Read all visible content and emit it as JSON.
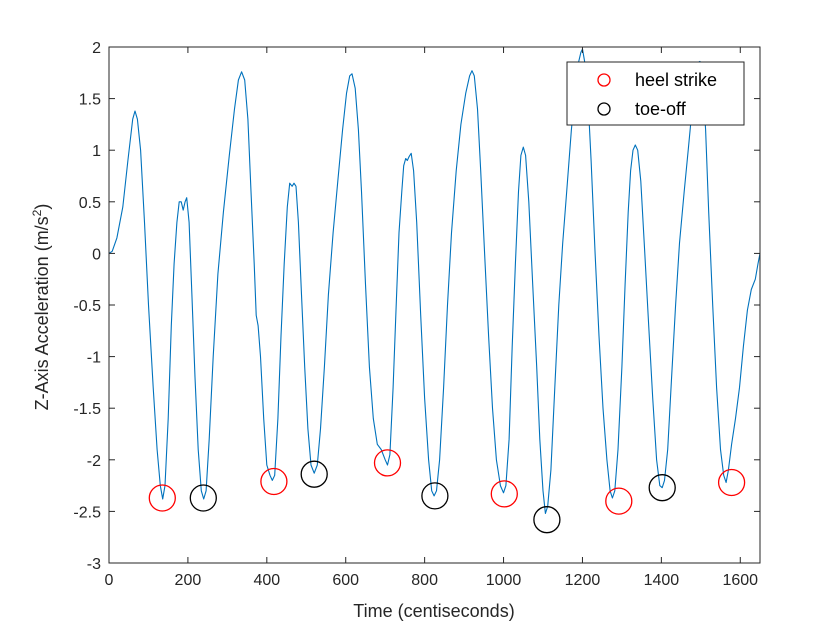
{
  "chart_data": {
    "type": "line",
    "xlabel": "Time (centiseconds)",
    "ylabel_main": "Z-Axis Acceleration (m/s",
    "ylabel_sup": "2",
    "ylabel_close": ")",
    "xlim": [
      0,
      1650
    ],
    "ylim": [
      -3,
      2
    ],
    "x_ticks": [
      0,
      200,
      400,
      600,
      800,
      1000,
      1200,
      1400,
      1600
    ],
    "y_ticks": [
      2,
      1.5,
      1,
      0.5,
      0,
      -0.5,
      -1,
      -1.5,
      -2,
      -2.5,
      -3
    ],
    "x_tick_labels": [
      "0",
      "200",
      "400",
      "600",
      "800",
      "1000",
      "1200",
      "1400",
      "1600"
    ],
    "y_tick_labels": [
      "2",
      "1.5",
      "1",
      "0.5",
      "0",
      "-0.5",
      "-1",
      "-1.5",
      "-2",
      "-2.5",
      "-3"
    ],
    "grid": false,
    "legend_position": "top-right",
    "series": [
      {
        "kind": "line",
        "color": "#0072BD",
        "points": [
          [
            0,
            0
          ],
          [
            8,
            0.02
          ],
          [
            20,
            0.15
          ],
          [
            35,
            0.45
          ],
          [
            48,
            0.9
          ],
          [
            60,
            1.3
          ],
          [
            66,
            1.38
          ],
          [
            72,
            1.3
          ],
          [
            80,
            1.0
          ],
          [
            90,
            0.3
          ],
          [
            100,
            -0.5
          ],
          [
            112,
            -1.3
          ],
          [
            122,
            -1.9
          ],
          [
            130,
            -2.25
          ],
          [
            136,
            -2.38
          ],
          [
            142,
            -2.25
          ],
          [
            150,
            -1.6
          ],
          [
            158,
            -0.7
          ],
          [
            165,
            -0.1
          ],
          [
            172,
            0.3
          ],
          [
            178,
            0.5
          ],
          [
            183,
            0.5
          ],
          [
            188,
            0.42
          ],
          [
            193,
            0.5
          ],
          [
            197,
            0.54
          ],
          [
            203,
            0.3
          ],
          [
            210,
            -0.4
          ],
          [
            218,
            -1.2
          ],
          [
            226,
            -1.9
          ],
          [
            234,
            -2.3
          ],
          [
            240,
            -2.38
          ],
          [
            246,
            -2.3
          ],
          [
            254,
            -1.8
          ],
          [
            264,
            -1.0
          ],
          [
            276,
            -0.2
          ],
          [
            290,
            0.4
          ],
          [
            305,
            0.95
          ],
          [
            318,
            1.4
          ],
          [
            328,
            1.68
          ],
          [
            336,
            1.76
          ],
          [
            344,
            1.68
          ],
          [
            352,
            1.3
          ],
          [
            360,
            0.6
          ],
          [
            368,
            -0.1
          ],
          [
            373,
            -0.6
          ],
          [
            378,
            -0.7
          ],
          [
            384,
            -1.0
          ],
          [
            392,
            -1.6
          ],
          [
            400,
            -2.05
          ],
          [
            408,
            -2.15
          ],
          [
            414,
            -2.2
          ],
          [
            420,
            -2.15
          ],
          [
            428,
            -1.6
          ],
          [
            436,
            -0.8
          ],
          [
            444,
            -0.1
          ],
          [
            452,
            0.45
          ],
          [
            458,
            0.68
          ],
          [
            464,
            0.65
          ],
          [
            469,
            0.68
          ],
          [
            474,
            0.65
          ],
          [
            480,
            0.3
          ],
          [
            488,
            -0.4
          ],
          [
            496,
            -1.1
          ],
          [
            504,
            -1.7
          ],
          [
            512,
            -2.05
          ],
          [
            520,
            -2.13
          ],
          [
            528,
            -2.05
          ],
          [
            536,
            -1.7
          ],
          [
            546,
            -1.1
          ],
          [
            556,
            -0.4
          ],
          [
            568,
            0.2
          ],
          [
            580,
            0.7
          ],
          [
            592,
            1.2
          ],
          [
            602,
            1.55
          ],
          [
            610,
            1.72
          ],
          [
            616,
            1.74
          ],
          [
            624,
            1.6
          ],
          [
            632,
            1.2
          ],
          [
            640,
            0.6
          ],
          [
            650,
            -0.3
          ],
          [
            660,
            -1.1
          ],
          [
            670,
            -1.6
          ],
          [
            680,
            -1.85
          ],
          [
            690,
            -1.9
          ],
          [
            700,
            -2.0
          ],
          [
            706,
            -2.05
          ],
          [
            712,
            -1.95
          ],
          [
            720,
            -1.3
          ],
          [
            728,
            -0.5
          ],
          [
            735,
            0.2
          ],
          [
            742,
            0.6
          ],
          [
            747,
            0.85
          ],
          [
            752,
            0.92
          ],
          [
            756,
            0.9
          ],
          [
            761,
            0.94
          ],
          [
            766,
            0.97
          ],
          [
            772,
            0.8
          ],
          [
            780,
            0.3
          ],
          [
            790,
            -0.6
          ],
          [
            800,
            -1.4
          ],
          [
            810,
            -2.0
          ],
          [
            818,
            -2.3
          ],
          [
            824,
            -2.35
          ],
          [
            830,
            -2.3
          ],
          [
            838,
            -2.0
          ],
          [
            848,
            -1.3
          ],
          [
            858,
            -0.5
          ],
          [
            868,
            0.2
          ],
          [
            880,
            0.8
          ],
          [
            892,
            1.25
          ],
          [
            904,
            1.55
          ],
          [
            914,
            1.72
          ],
          [
            920,
            1.77
          ],
          [
            926,
            1.72
          ],
          [
            934,
            1.4
          ],
          [
            942,
            0.8
          ],
          [
            952,
            0.0
          ],
          [
            962,
            -0.8
          ],
          [
            972,
            -1.5
          ],
          [
            982,
            -2.0
          ],
          [
            992,
            -2.25
          ],
          [
            1000,
            -2.32
          ],
          [
            1006,
            -2.25
          ],
          [
            1014,
            -1.8
          ],
          [
            1022,
            -0.9
          ],
          [
            1030,
            -0.1
          ],
          [
            1038,
            0.6
          ],
          [
            1044,
            0.95
          ],
          [
            1050,
            1.03
          ],
          [
            1056,
            0.95
          ],
          [
            1064,
            0.5
          ],
          [
            1074,
            -0.3
          ],
          [
            1084,
            -1.1
          ],
          [
            1092,
            -1.8
          ],
          [
            1100,
            -2.3
          ],
          [
            1106,
            -2.52
          ],
          [
            1112,
            -2.45
          ],
          [
            1120,
            -2.1
          ],
          [
            1130,
            -1.3
          ],
          [
            1140,
            -0.5
          ],
          [
            1150,
            0.1
          ],
          [
            1160,
            0.6
          ],
          [
            1172,
            1.2
          ],
          [
            1182,
            1.6
          ],
          [
            1190,
            1.85
          ],
          [
            1196,
            1.95
          ],
          [
            1200,
            1.98
          ],
          [
            1206,
            1.85
          ],
          [
            1214,
            1.5
          ],
          [
            1222,
            0.9
          ],
          [
            1232,
            0.0
          ],
          [
            1242,
            -0.8
          ],
          [
            1252,
            -1.5
          ],
          [
            1262,
            -2.0
          ],
          [
            1270,
            -2.3
          ],
          [
            1276,
            -2.37
          ],
          [
            1282,
            -2.3
          ],
          [
            1290,
            -1.9
          ],
          [
            1300,
            -1.1
          ],
          [
            1308,
            -0.3
          ],
          [
            1316,
            0.4
          ],
          [
            1322,
            0.8
          ],
          [
            1328,
            1.0
          ],
          [
            1334,
            1.05
          ],
          [
            1340,
            1.0
          ],
          [
            1348,
            0.7
          ],
          [
            1358,
            0.0
          ],
          [
            1368,
            -0.7
          ],
          [
            1378,
            -1.4
          ],
          [
            1388,
            -2.0
          ],
          [
            1396,
            -2.25
          ],
          [
            1402,
            -2.27
          ],
          [
            1408,
            -2.2
          ],
          [
            1416,
            -1.9
          ],
          [
            1426,
            -1.2
          ],
          [
            1436,
            -0.5
          ],
          [
            1446,
            0.1
          ],
          [
            1458,
            0.6
          ],
          [
            1468,
            1.0
          ],
          [
            1478,
            1.4
          ],
          [
            1486,
            1.7
          ],
          [
            1492,
            1.85
          ],
          [
            1498,
            1.86
          ],
          [
            1504,
            1.7
          ],
          [
            1512,
            1.2
          ],
          [
            1520,
            0.4
          ],
          [
            1530,
            -0.5
          ],
          [
            1540,
            -1.3
          ],
          [
            1550,
            -1.9
          ],
          [
            1558,
            -2.15
          ],
          [
            1564,
            -2.22
          ],
          [
            1570,
            -2.1
          ],
          [
            1578,
            -1.85
          ],
          [
            1588,
            -1.6
          ],
          [
            1598,
            -1.3
          ],
          [
            1608,
            -0.9
          ],
          [
            1618,
            -0.55
          ],
          [
            1628,
            -0.35
          ],
          [
            1638,
            -0.25
          ],
          [
            1645,
            -0.1
          ],
          [
            1650,
            0.0
          ]
        ]
      },
      {
        "name": "heel strike",
        "kind": "markers",
        "color": "#FF0000",
        "points": [
          [
            135,
            -2.37
          ],
          [
            418,
            -2.21
          ],
          [
            706,
            -2.03
          ],
          [
            1002,
            -2.33
          ],
          [
            1292,
            -2.4
          ],
          [
            1578,
            -2.22
          ]
        ]
      },
      {
        "name": "toe-off",
        "kind": "markers",
        "color": "#000000",
        "points": [
          [
            239,
            -2.37
          ],
          [
            520,
            -2.14
          ],
          [
            826,
            -2.35
          ],
          [
            1110,
            -2.58
          ],
          [
            1402,
            -2.27
          ]
        ]
      }
    ],
    "legend": [
      {
        "label": "heel strike",
        "color": "#FF0000"
      },
      {
        "label": "toe-off",
        "color": "#000000"
      }
    ]
  }
}
